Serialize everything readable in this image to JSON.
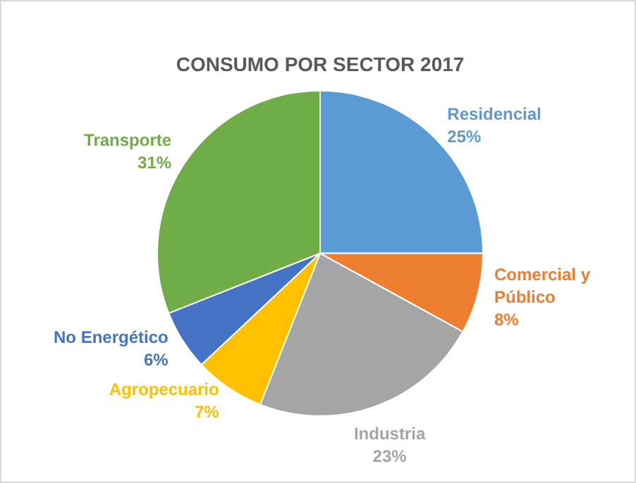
{
  "chart_data": {
    "type": "pie",
    "title": "CONSUMO POR SECTOR 2017",
    "categories": [
      "Residencial",
      "Comercial y Público",
      "Industria",
      "Agropecuario",
      "No Energético",
      "Transporte"
    ],
    "values": [
      25,
      8,
      23,
      7,
      6,
      31
    ],
    "value_labels": [
      "25%",
      "8%",
      "23%",
      "7%",
      "6%",
      "31%"
    ],
    "colors": [
      "#5b9bd5",
      "#ed7d31",
      "#a5a5a5",
      "#ffc000",
      "#4472c4",
      "#70ad47"
    ],
    "legend": false
  }
}
